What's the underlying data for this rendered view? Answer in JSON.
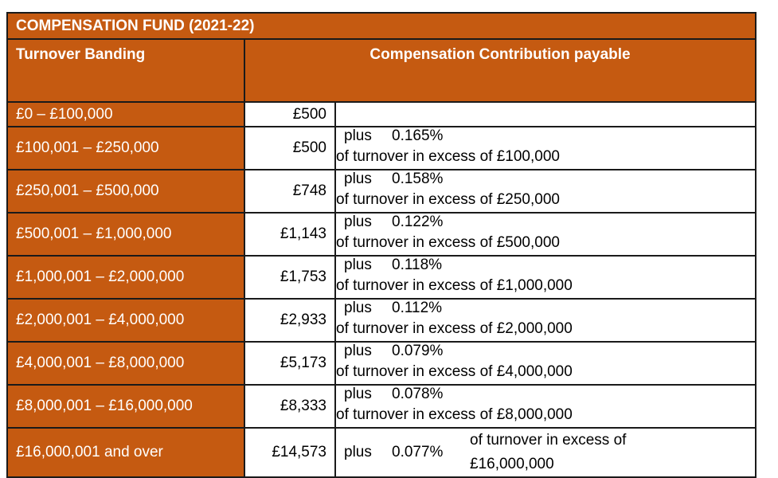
{
  "table": {
    "title": "COMPENSATION FUND (2021-22)",
    "col_header_band": "Turnover Banding",
    "col_header_contribution": "Compensation Contribution payable",
    "rows": [
      {
        "band": "£0 – £100,000",
        "amount": "£500",
        "plus": "",
        "rate": "",
        "desc": ""
      },
      {
        "band": "£100,001 – £250,000",
        "amount": "£500",
        "plus": "plus",
        "rate": "0.165%",
        "desc": "of turnover in excess of £100,000"
      },
      {
        "band": "£250,001 – £500,000",
        "amount": "£748",
        "plus": "plus",
        "rate": "0.158%",
        "desc": "of turnover in excess of £250,000"
      },
      {
        "band": "£500,001 – £1,000,000",
        "amount": "£1,143",
        "plus": "plus",
        "rate": "0.122%",
        "desc": "of turnover in excess of £500,000"
      },
      {
        "band": "£1,000,001 – £2,000,000",
        "amount": "£1,753",
        "plus": "plus",
        "rate": "0.118%",
        "desc": "of turnover in excess of £1,000,000"
      },
      {
        "band": "£2,000,001 – £4,000,000",
        "amount": "£2,933",
        "plus": "plus",
        "rate": "0.112%",
        "desc": "of turnover in excess of £2,000,000"
      },
      {
        "band": "£4,000,001 – £8,000,000",
        "amount": "£5,173",
        "plus": "plus",
        "rate": "0.079%",
        "desc": "of turnover in excess of £4,000,000"
      },
      {
        "band": "£8,000,001 – £16,000,000",
        "amount": "£8,333",
        "plus": "plus",
        "rate": "0.078%",
        "desc": "of turnover in excess of £8,000,000"
      },
      {
        "band": "£16,000,001 and over",
        "amount": "£14,573",
        "plus": "plus",
        "rate": "0.077%",
        "desc": "of turnover in excess of £16,000,000"
      }
    ]
  },
  "colors": {
    "header_fill": "#C55A11",
    "header_text": "#FFFFFF",
    "border": "#1A1A1A"
  }
}
